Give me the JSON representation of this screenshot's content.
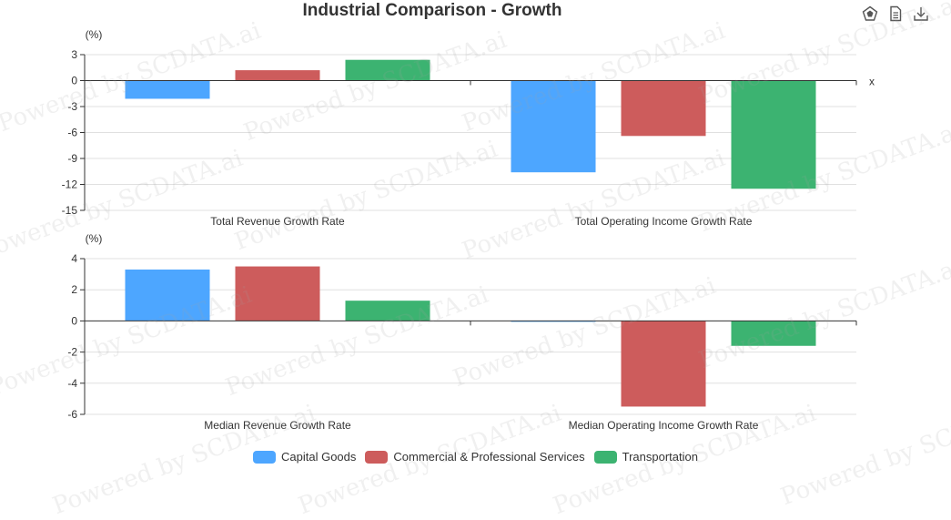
{
  "title": "Industrial Comparison - Growth",
  "watermark": "Powered by SCDATA.ai",
  "toolbox": {
    "icons": [
      "data-view-icon",
      "document-icon",
      "download-icon"
    ]
  },
  "colors": {
    "axis": "#333333",
    "grid": "#e0e0e0"
  },
  "chart_data": [
    {
      "type": "bar",
      "unit_label": "(%)",
      "x_axis_name": "x",
      "ylim": [
        -15,
        3
      ],
      "yticks": [
        3,
        0,
        -3,
        -6,
        -9,
        -12,
        -15
      ],
      "categories": [
        "Total Revenue Growth Rate",
        "Total Operating Income Growth Rate"
      ],
      "series": [
        {
          "name": "Capital Goods",
          "color": "#4da6ff",
          "values": [
            -2.1,
            -10.6
          ]
        },
        {
          "name": "Commercial & Professional Services",
          "color": "#cd5c5c",
          "values": [
            1.2,
            -6.4
          ]
        },
        {
          "name": "Transportation",
          "color": "#3cb371",
          "values": [
            2.4,
            -12.5
          ]
        }
      ],
      "grid": true
    },
    {
      "type": "bar",
      "unit_label": "(%)",
      "ylim": [
        -6,
        4
      ],
      "yticks": [
        4,
        2,
        0,
        -2,
        -4,
        -6
      ],
      "categories": [
        "Median Revenue Growth Rate",
        "Median Operating Income Growth Rate"
      ],
      "series": [
        {
          "name": "Capital Goods",
          "color": "#4da6ff",
          "values": [
            3.3,
            0.0
          ]
        },
        {
          "name": "Commercial & Professional Services",
          "color": "#cd5c5c",
          "values": [
            3.5,
            -5.5
          ]
        },
        {
          "name": "Transportation",
          "color": "#3cb371",
          "values": [
            1.3,
            -1.6
          ]
        }
      ],
      "grid": true
    }
  ],
  "legend": [
    {
      "name": "Capital Goods",
      "color": "#4da6ff"
    },
    {
      "name": "Commercial & Professional Services",
      "color": "#cd5c5c"
    },
    {
      "name": "Transportation",
      "color": "#3cb371"
    }
  ]
}
